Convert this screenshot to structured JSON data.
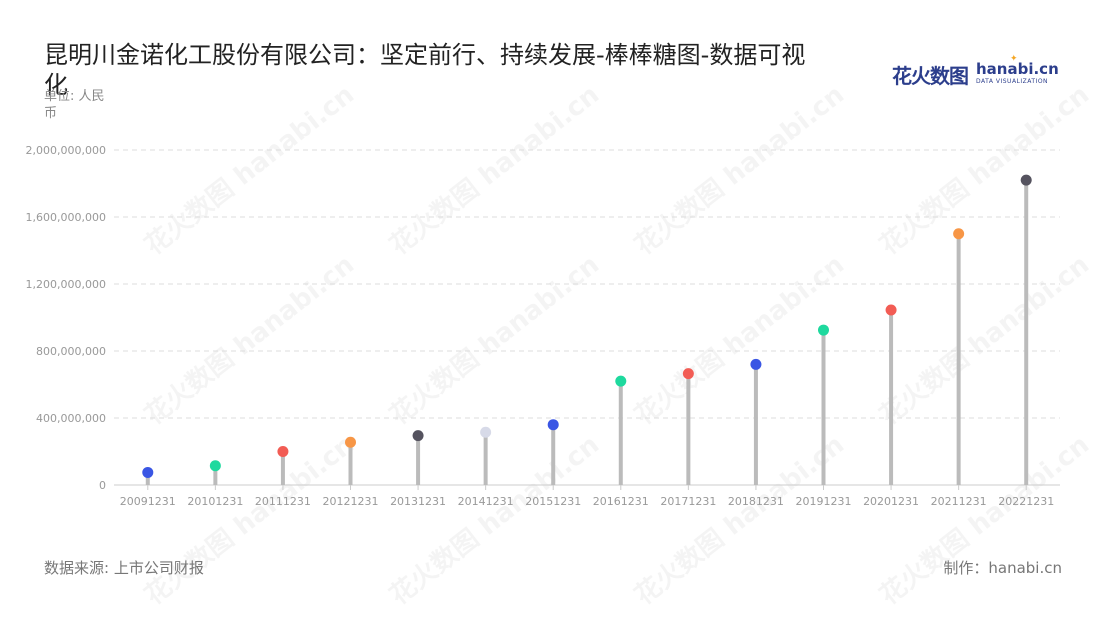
{
  "header": {
    "title": "昆明川金诺化工股份有限公司：坚定前行、持续发展-棒棒糖图-数据可视化",
    "unit": "单位: 人民币"
  },
  "logo": {
    "cn": "花火数图",
    "en": "hanabi.cn",
    "sub": "DATA VISUALIZATION"
  },
  "watermark": "花火数图 hanabi.cn",
  "footer": {
    "source": "数据来源: 上市公司财报",
    "maker": "制作：hanabi.cn"
  },
  "chart_data": {
    "type": "lollipop",
    "categories": [
      "20091231",
      "20101231",
      "20111231",
      "20121231",
      "20131231",
      "20141231",
      "20151231",
      "20161231",
      "20171231",
      "20181231",
      "20191231",
      "20201231",
      "20211231",
      "20221231"
    ],
    "values": [
      75000000,
      115000000,
      200000000,
      255000000,
      295000000,
      315000000,
      360000000,
      620000000,
      665000000,
      720000000,
      925000000,
      1045000000,
      1500000000,
      1820000000
    ],
    "dot_colors": [
      "#3a56e4",
      "#1ed99e",
      "#f25c54",
      "#f79646",
      "#55535f",
      "#d7dae8",
      "#3a56e4",
      "#1ed99e",
      "#f25c54",
      "#3a56e4",
      "#1ed99e",
      "#f25c54",
      "#f79646",
      "#55535f"
    ],
    "stem_color": "#bbbbbb",
    "ylim": [
      0,
      2000000000
    ],
    "yticks": [
      0,
      400000000,
      800000000,
      1200000000,
      1600000000,
      2000000000
    ],
    "ytick_labels": [
      "0",
      "400,000,000",
      "800,000,000",
      "1,200,000,000",
      "1,600,000,000",
      "2,000,000,000"
    ],
    "grid": true,
    "legend": "none"
  }
}
